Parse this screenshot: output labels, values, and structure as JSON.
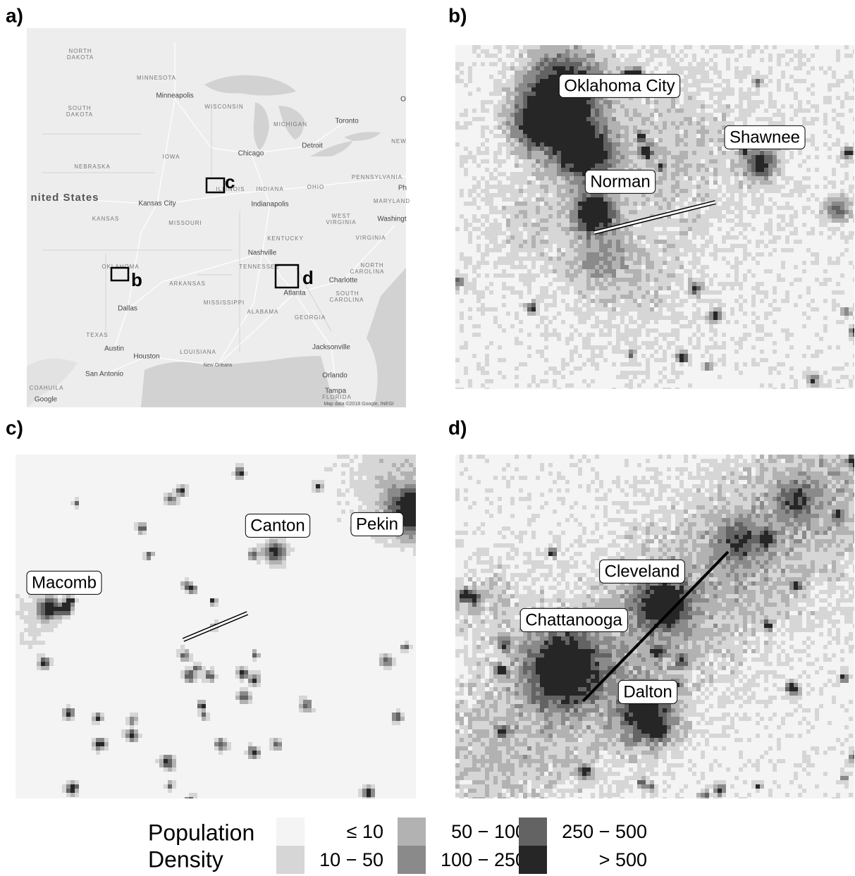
{
  "panels": [
    {
      "label": "a)",
      "map_labels": [
        "NORTH",
        "DAKOTA",
        "MINNESOTA",
        "Minneapolis",
        "SOUTH",
        "DAKOTA",
        "WISCONSIN",
        "MICHIGAN",
        "Toronto",
        "O",
        "NEBRASKA",
        "IOWA",
        "Chicago",
        "Detroit",
        "NEW",
        "PENNSYLVANIA",
        "Ph",
        "nited States",
        "Kansas City",
        "ILLINOIS",
        "INDIANA",
        "OHIO",
        "MARYLAND",
        "KANSAS",
        "MISSOURI",
        "Indianapolis",
        "WEST",
        "VIRGINIA",
        "Washingt",
        "KENTUCKY",
        "VIRGINIA",
        "Nashville",
        "TENNESSEE",
        "NORTH",
        "CAROLINA",
        "OKLAHOMA",
        "ARKANSAS",
        "Charlotte",
        "Atlanta",
        "SOUTH",
        "CAROLINA",
        "Dallas",
        "MISSISSIPPI",
        "ALABAMA",
        "GEORGIA",
        "TEXAS",
        "Austin",
        "Houston",
        "LOUISIANA",
        "Jacksonville",
        "New Orleans",
        "San Antonio",
        "Orlando",
        "COAHUILA",
        "Tampa",
        "FLORIDA",
        "Google",
        "Map data ©2018 Google, INEGI"
      ],
      "boxes": [
        "b",
        "c",
        "d"
      ]
    },
    {
      "label": "b)",
      "places": [
        "Oklahoma City",
        "Shawnee",
        "Norman"
      ]
    },
    {
      "label": "c)",
      "places": [
        "Canton",
        "Pekin",
        "Macomb"
      ]
    },
    {
      "label": "d)",
      "places": [
        "Cleveland",
        "Chattanooga",
        "Dalton"
      ]
    }
  ],
  "legend": {
    "title": [
      "Population",
      "Density"
    ],
    "items": [
      {
        "label": "≤ 10",
        "color": "#f4f4f4"
      },
      {
        "label": "10 − 50",
        "color": "#d6d6d6"
      },
      {
        "label": "50 − 100",
        "color": "#b2b2b2"
      },
      {
        "label": "100 − 250",
        "color": "#8a8a8a"
      },
      {
        "label": "250 − 500",
        "color": "#636363"
      },
      {
        "label": "> 500",
        "color": "#262626"
      }
    ]
  }
}
